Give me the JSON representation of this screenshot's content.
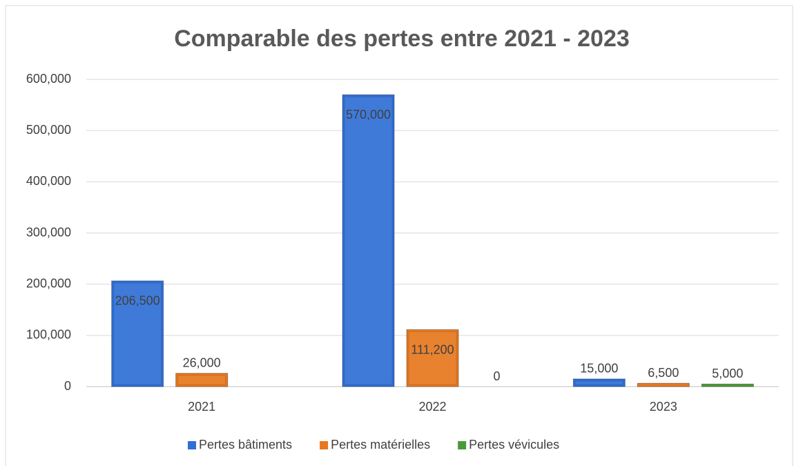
{
  "chart_data": {
    "type": "bar",
    "title": "Comparable des pertes entre 2021 - 2023",
    "categories": [
      "2021",
      "2022",
      "2023"
    ],
    "series": [
      {
        "name": "Pertes bâtiments",
        "color": "#2f6fd6",
        "values": [
          206500,
          570000,
          15000
        ],
        "value_labels": [
          "206,500",
          "570,000",
          "15,000"
        ]
      },
      {
        "name": "Pertes matérielles",
        "color": "#e8781e",
        "values": [
          26000,
          111200,
          6500
        ],
        "value_labels": [
          "26,000",
          "111,200",
          "6,500"
        ]
      },
      {
        "name": "Pertes vévicules",
        "color": "#4a9a3a",
        "values": [
          null,
          0,
          5000
        ],
        "value_labels": [
          null,
          "0",
          "5,000"
        ]
      }
    ],
    "ylim": [
      0,
      600000
    ],
    "yticks": [
      0,
      {
        "value": 100000,
        "label": "100,000"
      },
      {
        "value": 200000,
        "label": "200,000"
      },
      {
        "value": 300000,
        "label": "300,000"
      },
      {
        "value": 400000,
        "label": "400,000"
      },
      {
        "value": 500000,
        "label": "500,000"
      },
      {
        "value": 600000,
        "label": "600,000"
      }
    ],
    "grid": true,
    "legend": "bottom"
  }
}
